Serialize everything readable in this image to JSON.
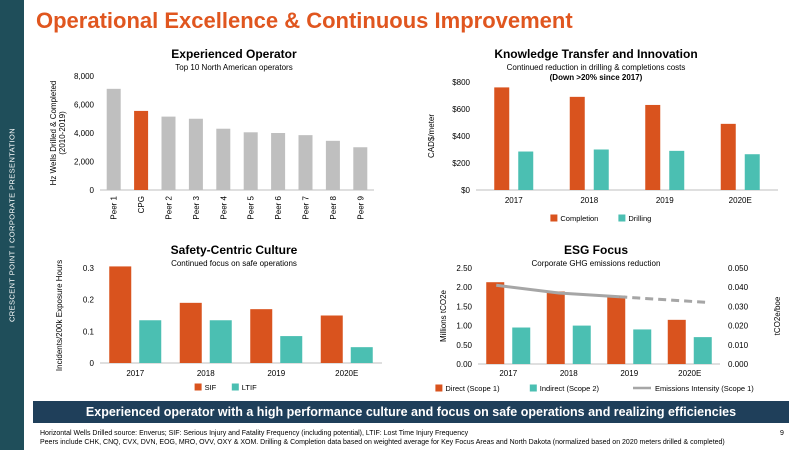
{
  "sidebar": {
    "text": "CRESCENT POINT   I   CORPORATE PRESENTATION"
  },
  "page": {
    "title": "Operational Excellence & Continuous Improvement",
    "banner": "Experienced operator with a high performance culture and focus on safe operations and realizing efficiencies",
    "footnote_1": "Horizontal Wells Drilled source: Enverus; SIF: Serious Injury and Fatality Frequency (including potential), LTIF: Lost Time Injury Frequency",
    "footnote_2": "Peers include CHK, CNQ, CVX, DVN, EOG, MRO, OVV, OXY & XOM. Drilling & Completion data based on weighted average for Key Focus Areas and North Dakota (normalized based on 2020 meters drilled & completed)",
    "page_number": "9"
  },
  "chart_data": [
    {
      "id": "operator",
      "type": "bar",
      "title": "Experienced Operator",
      "subtitle": "Top 10 North American operators",
      "ylabel": "Hz Wells Drilled & Completed (2010-2019)",
      "ylim": [
        0,
        8000
      ],
      "yticks": [
        "0",
        "2,000",
        "4,000",
        "6,000",
        "8,000"
      ],
      "categories": [
        "Peer 1",
        "CPG",
        "Peer 2",
        "Peer 3",
        "Peer 4",
        "Peer 5",
        "Peer 6",
        "Peer 7",
        "Peer 8",
        "Peer 9"
      ],
      "values": [
        7100,
        5550,
        5150,
        5000,
        4300,
        4050,
        4000,
        3850,
        3450,
        3000
      ],
      "colors": [
        "#bfbfbf",
        "#d9531e",
        "#bfbfbf",
        "#bfbfbf",
        "#bfbfbf",
        "#bfbfbf",
        "#bfbfbf",
        "#bfbfbf",
        "#bfbfbf",
        "#bfbfbf"
      ]
    },
    {
      "id": "knowledge",
      "type": "bar",
      "title": "Knowledge Transfer and Innovation",
      "subtitle": "Continued reduction in drilling & completions costs",
      "subtitle2": "(Down >20% since 2017)",
      "ylabel": "CAD$/meter",
      "ylim": [
        0,
        800
      ],
      "yticks": [
        "$0",
        "$200",
        "$400",
        "$600",
        "$800"
      ],
      "categories": [
        "2017",
        "2018",
        "2019",
        "2020E"
      ],
      "series": [
        {
          "name": "Completion",
          "color": "#d9531e",
          "values": [
            760,
            690,
            630,
            490
          ]
        },
        {
          "name": "Drilling",
          "color": "#4bbfb2",
          "values": [
            285,
            300,
            290,
            265
          ]
        }
      ],
      "legend": "bottom"
    },
    {
      "id": "safety",
      "type": "bar",
      "title": "Safety-Centric Culture",
      "subtitle": "Continued focus on safe operations",
      "ylabel": "Incidents/200k Exposure Hours",
      "ylim": [
        0,
        0.3
      ],
      "yticks": [
        "0",
        "0.1",
        "0.2",
        "0.3"
      ],
      "categories": [
        "2017",
        "2018",
        "2019",
        "2020E"
      ],
      "series": [
        {
          "name": "SIF",
          "color": "#d9531e",
          "values": [
            0.305,
            0.19,
            0.17,
            0.15
          ]
        },
        {
          "name": "LTIF",
          "color": "#4bbfb2",
          "values": [
            0.135,
            0.135,
            0.085,
            0.05
          ]
        }
      ],
      "legend": "bottom"
    },
    {
      "id": "esg",
      "type": "bar",
      "title": "ESG Focus",
      "subtitle": "Corporate GHG emissions reduction",
      "ylabel": "Millions tCO2e",
      "y2label": "tCO2e/boe",
      "ylim": [
        0,
        2.5
      ],
      "y2lim": [
        0,
        0.05
      ],
      "yticks": [
        "0.00",
        "0.50",
        "1.00",
        "1.50",
        "2.00",
        "2.50"
      ],
      "y2ticks": [
        "0.000",
        "0.010",
        "0.020",
        "0.030",
        "0.040",
        "0.050"
      ],
      "categories": [
        "2017",
        "2018",
        "2019",
        "2020E"
      ],
      "series": [
        {
          "name": "Direct (Scope 1)",
          "color": "#d9531e",
          "values": [
            2.13,
            1.89,
            1.78,
            1.15
          ]
        },
        {
          "name": "Indirect (Scope 2)",
          "color": "#4bbfb2",
          "values": [
            0.95,
            1.0,
            0.9,
            0.7
          ]
        },
        {
          "name": "Emissions Intensity (Scope 1)",
          "color": "#a6a6a6",
          "type": "line",
          "axis": "right",
          "values": [
            0.041,
            0.037,
            0.035,
            0.032
          ]
        }
      ],
      "legend": "bottom"
    }
  ]
}
